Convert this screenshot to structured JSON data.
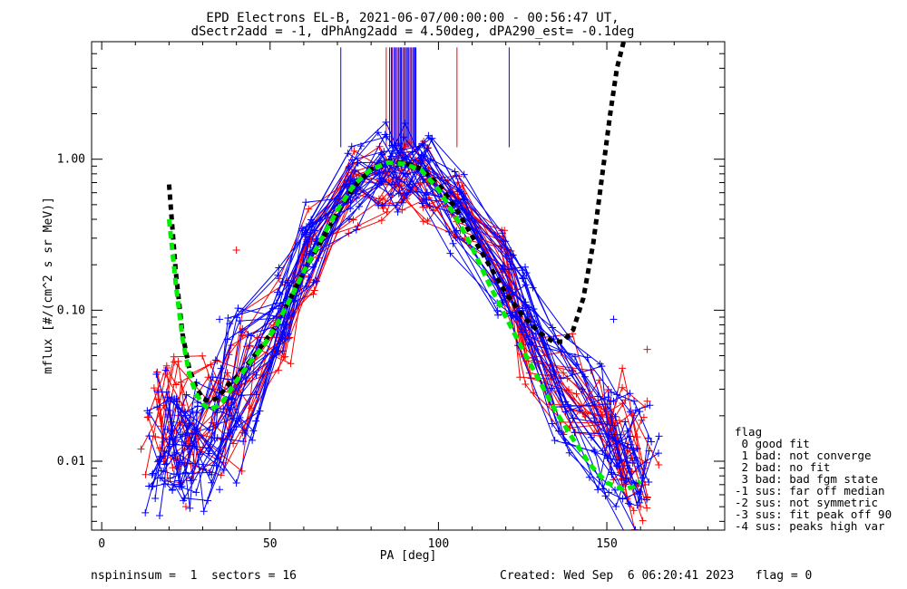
{
  "title_line1": "EPD Electrons EL-B, 2021-06-07/00:00:00 - 00:56:47 UT,",
  "title_line2": "dSectr2add = -1, dPhAng2add = 4.50deg, dPA290_est=  -0.1deg",
  "footer_left": "nspininsum =  1  sectors = 16",
  "footer_right": "Created: Wed Sep  6 06:20:41 2023   flag = 0",
  "legend": {
    "title": "flag",
    "items": [
      " 0 good fit",
      " 1 bad: not converge",
      " 2 bad: no fit",
      " 3 bad: bad fgm state",
      "-1 sus: far off median",
      "-2 sus: not symmetric",
      "-3 sus: fit peak off 90",
      "-4 sus: peaks high var"
    ]
  },
  "colors": {
    "blue_spin": "#0000ff",
    "red_spin": "#ff0000",
    "median_fit": "#000000",
    "good_fit": "#00ee00",
    "marker_purple": "#800080"
  },
  "chart_data": {
    "type": "line",
    "xlabel": "PA [deg]",
    "ylabel": "mflux [#/(cm^2 s sr MeV)]",
    "xlim": [
      -3,
      185
    ],
    "ylim": [
      0.0035,
      6.0
    ],
    "yscale": "log",
    "xticks": [
      0,
      50,
      100,
      150
    ],
    "xtick_labels": [
      "0",
      "50",
      "100",
      "150"
    ],
    "yticks": [
      0.01,
      0.1,
      1.0
    ],
    "ytick_labels": [
      "0.01",
      "0.10",
      "1.00"
    ],
    "x_minor_step": 10,
    "top_marker_lines": {
      "ymin": 1.2,
      "ymax": 5.5,
      "blue": [
        71,
        85.5,
        86,
        86.8,
        87.5,
        88.3,
        89.0,
        89.8,
        90.5,
        91.2,
        92.0,
        92.7,
        93.3,
        121
      ],
      "purple": [
        86.3,
        87.2,
        88.0,
        88.7,
        89.4,
        90.2,
        90.9,
        91.6,
        92.4,
        93.0
      ],
      "red": [
        84.5,
        105.5
      ]
    },
    "series": [
      {
        "name": "median_fit",
        "x": [
          20,
          22,
          24,
          26,
          28,
          30,
          32,
          34,
          36,
          38,
          40,
          44,
          48,
          52,
          56,
          60,
          65,
          70,
          75,
          80,
          85,
          90,
          95,
          100,
          105,
          110,
          115,
          120,
          125,
          130,
          134,
          137,
          140,
          143,
          146,
          149,
          151,
          153,
          155
        ],
        "y": [
          0.68,
          0.18,
          0.07,
          0.041,
          0.031,
          0.026,
          0.025,
          0.026,
          0.029,
          0.033,
          0.036,
          0.046,
          0.06,
          0.08,
          0.12,
          0.18,
          0.28,
          0.44,
          0.66,
          0.86,
          0.96,
          0.95,
          0.86,
          0.68,
          0.48,
          0.31,
          0.2,
          0.13,
          0.092,
          0.071,
          0.062,
          0.062,
          0.074,
          0.12,
          0.28,
          0.9,
          2.0,
          4.0,
          6.0
        ]
      },
      {
        "name": "good_fit",
        "x": [
          20,
          22,
          24,
          26,
          28,
          30,
          32,
          34,
          36,
          38,
          40,
          44,
          48,
          52,
          56,
          60,
          65,
          70,
          75,
          80,
          85,
          90,
          95,
          100,
          105,
          110,
          115,
          120,
          125,
          130,
          135,
          140,
          145,
          150,
          155,
          158,
          160
        ],
        "y": [
          0.4,
          0.15,
          0.065,
          0.038,
          0.028,
          0.024,
          0.022,
          0.023,
          0.025,
          0.029,
          0.034,
          0.045,
          0.058,
          0.08,
          0.12,
          0.18,
          0.29,
          0.46,
          0.68,
          0.86,
          0.95,
          0.93,
          0.84,
          0.63,
          0.42,
          0.26,
          0.15,
          0.09,
          0.055,
          0.034,
          0.021,
          0.014,
          0.0095,
          0.0072,
          0.0065,
          0.0068,
          0.0074
        ]
      }
    ],
    "spins": {
      "pa": [
        18,
        22,
        26,
        36,
        42,
        54,
        62,
        75,
        84,
        90,
        96,
        106,
        120,
        126,
        138,
        150,
        155,
        160
      ],
      "blue_profile": [
        0.013,
        0.012,
        0.013,
        0.02,
        0.034,
        0.1,
        0.28,
        0.68,
        0.84,
        0.87,
        0.84,
        0.48,
        0.16,
        0.1,
        0.03,
        0.018,
        0.012,
        0.01
      ],
      "red_profile": [
        0.02,
        0.02,
        0.022,
        0.022,
        0.032,
        0.08,
        0.23,
        0.62,
        0.8,
        0.82,
        0.8,
        0.55,
        0.22,
        0.06,
        0.035,
        0.018,
        0.014,
        0.009
      ],
      "blue_count": 26,
      "red_count": 18,
      "spread_decades": 0.22,
      "edge_spread_decades": 0.4,
      "seed": 7
    },
    "extra_points": {
      "blue": [
        [
          17,
          0.01
        ],
        [
          19,
          0.04
        ],
        [
          21,
          0.0065
        ],
        [
          24,
          0.015
        ],
        [
          35,
          0.0065
        ],
        [
          35,
          0.087
        ],
        [
          152,
          0.087
        ],
        [
          152,
          0.025
        ],
        [
          157,
          0.0105
        ]
      ],
      "red": [
        [
          25,
          0.005
        ],
        [
          40,
          0.25
        ],
        [
          162,
          0.055
        ],
        [
          162,
          0.025
        ],
        [
          161,
          0.0195
        ],
        [
          159,
          0.0145
        ],
        [
          162,
          0.0058
        ],
        [
          160,
          0.005
        ],
        [
          155,
          0.007
        ]
      ]
    }
  }
}
